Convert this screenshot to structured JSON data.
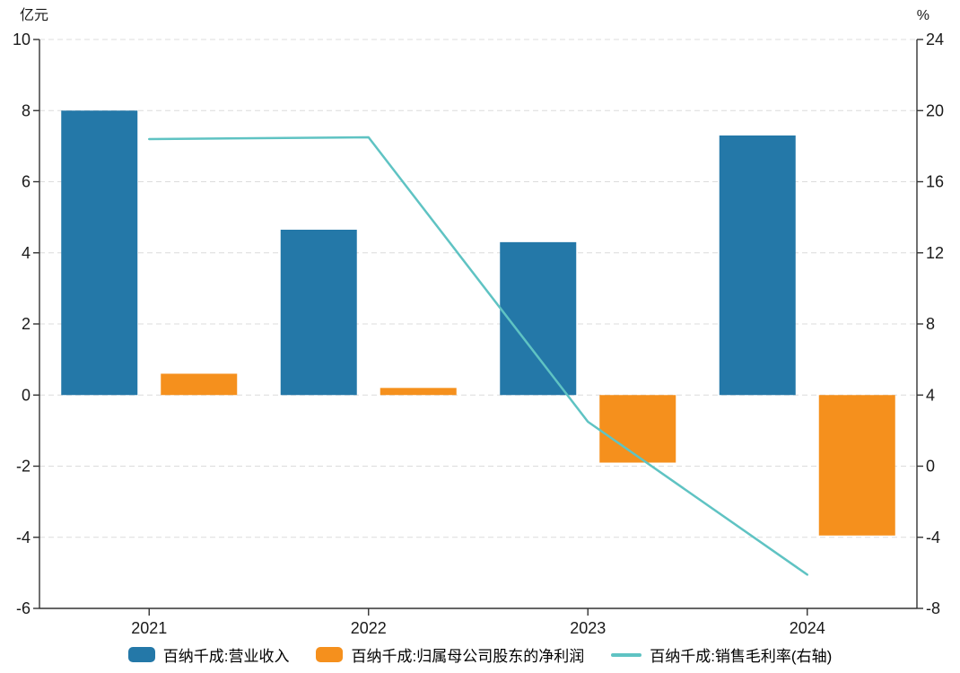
{
  "chart_data": {
    "type": "bar+line",
    "categories": [
      "2021",
      "2022",
      "2023",
      "2024"
    ],
    "series": [
      {
        "name": "百纳千成:营业收入",
        "type": "bar",
        "axis": "left",
        "color": "#2478A8",
        "values": [
          8.0,
          4.65,
          4.3,
          7.3
        ]
      },
      {
        "name": "百纳千成:归属母公司股东的净利润",
        "type": "bar",
        "axis": "left",
        "color": "#F5901D",
        "values": [
          0.6,
          0.2,
          -1.9,
          -3.95
        ]
      },
      {
        "name": "百纳千成:销售毛利率(右轴)",
        "type": "line",
        "axis": "right",
        "color": "#5FC3C3",
        "values": [
          18.4,
          18.5,
          2.5,
          -6.1
        ]
      }
    ],
    "left_axis": {
      "unit": "亿元",
      "min": -6,
      "max": 10,
      "ticks": [
        10,
        8,
        6,
        4,
        2,
        0,
        -2,
        -4,
        -6
      ]
    },
    "right_axis": {
      "unit": "%",
      "min": -8,
      "max": 24,
      "ticks": [
        24,
        20,
        16,
        12,
        8,
        4,
        0,
        -4,
        -8
      ]
    },
    "grid": "horizontal dashed",
    "legend_position": "bottom-center",
    "colors": {
      "axis_line": "#333333",
      "grid_line": "#dcdcdc",
      "tick_text": "#1a1a1a"
    }
  }
}
